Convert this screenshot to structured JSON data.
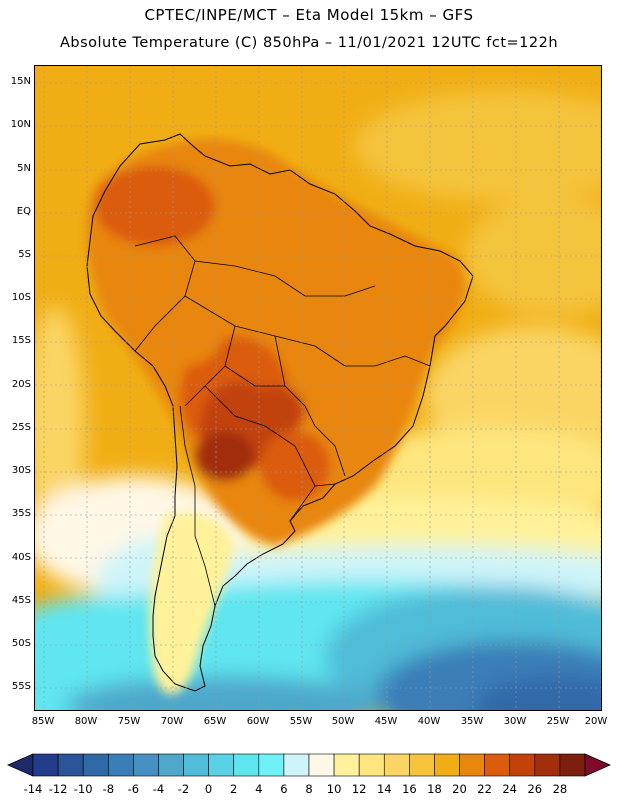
{
  "header": {
    "line1": "CPTEC/INPE/MCT –  Eta Model 15km – GFS",
    "line2": "Absolute Temperature (C) 850hPa – 11/01/2021 12UTC fct=122h"
  },
  "map": {
    "lat_ticks": [
      "15N",
      "10N",
      "5N",
      "EQ",
      "5S",
      "10S",
      "15S",
      "20S",
      "25S",
      "30S",
      "35S",
      "40S",
      "45S",
      "50S",
      "55S"
    ],
    "lon_ticks": [
      "85W",
      "80W",
      "75W",
      "70W",
      "65W",
      "60W",
      "55W",
      "50W",
      "45W",
      "40W",
      "35W",
      "30W",
      "25W",
      "20W"
    ]
  },
  "colorbar": {
    "labels": [
      "-14",
      "-12",
      "-10",
      "-8",
      "-6",
      "-4",
      "-2",
      "0",
      "2",
      "4",
      "6",
      "8",
      "10",
      "12",
      "14",
      "16",
      "18",
      "20",
      "22",
      "24",
      "26",
      "28"
    ],
    "colors": [
      "#233c8c",
      "#2a5598",
      "#3069a8",
      "#3a7eb8",
      "#4691c2",
      "#4ea8cc",
      "#4fbcd8",
      "#5ad2e6",
      "#5ee6f0",
      "#6ff2f6",
      "#cef4fa",
      "#fff8e6",
      "#fff29a",
      "#fde67e",
      "#fad564",
      "#f5c43c",
      "#f1ae14",
      "#e8860e",
      "#dc5c0a",
      "#c2420a",
      "#a22e0c",
      "#7e1e0e"
    ],
    "under_color": "#1f2a6a",
    "over_color": "#800a2a"
  }
}
